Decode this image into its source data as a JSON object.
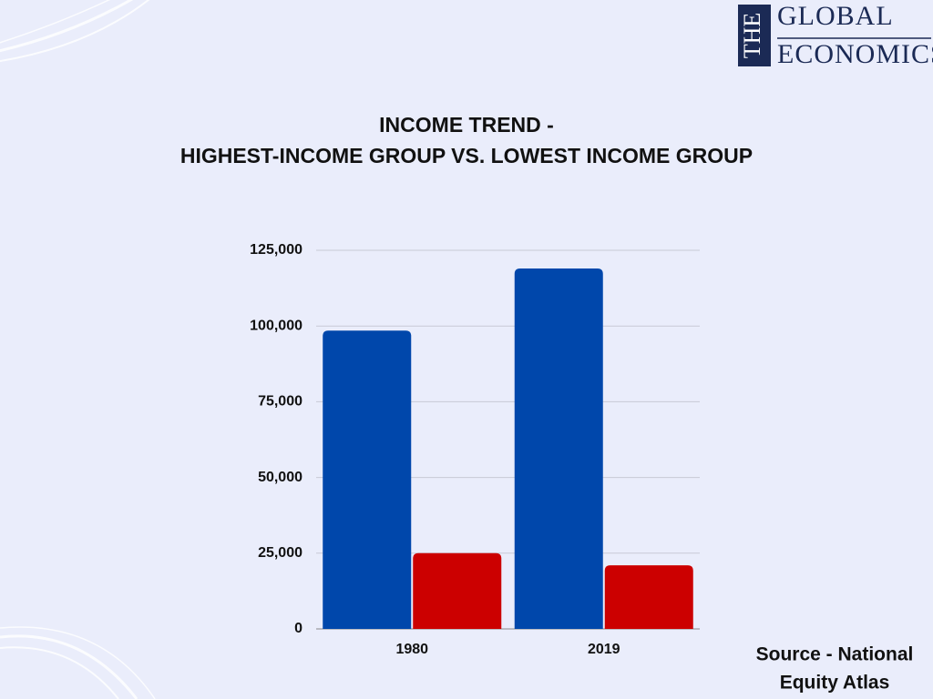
{
  "logo": {
    "the": "THE",
    "line1": "GLOBAL",
    "line2": "ECONOMICS"
  },
  "source": [
    "Source - National",
    "Equity Atlas"
  ],
  "chart_data": {
    "type": "bar",
    "title": [
      "INCOME TREND -",
      "HIGHEST-INCOME GROUP VS. LOWEST INCOME GROUP"
    ],
    "categories": [
      "1980",
      "2019"
    ],
    "series": [
      {
        "color": "#0047ab",
        "values": [
          98500,
          119000
        ]
      },
      {
        "color": "#cc0000",
        "values": [
          25000,
          21000
        ]
      }
    ],
    "ylim": [
      0,
      125000
    ],
    "yticks": [
      0,
      {
        "value": 25000,
        "label": "25,000"
      },
      {
        "value": 50000,
        "label": "50,000"
      },
      {
        "value": 75000,
        "label": "75,000"
      },
      {
        "value": 100000,
        "label": "100,000"
      },
      {
        "value": 125000,
        "label": "125,000"
      }
    ],
    "grid": true
  }
}
